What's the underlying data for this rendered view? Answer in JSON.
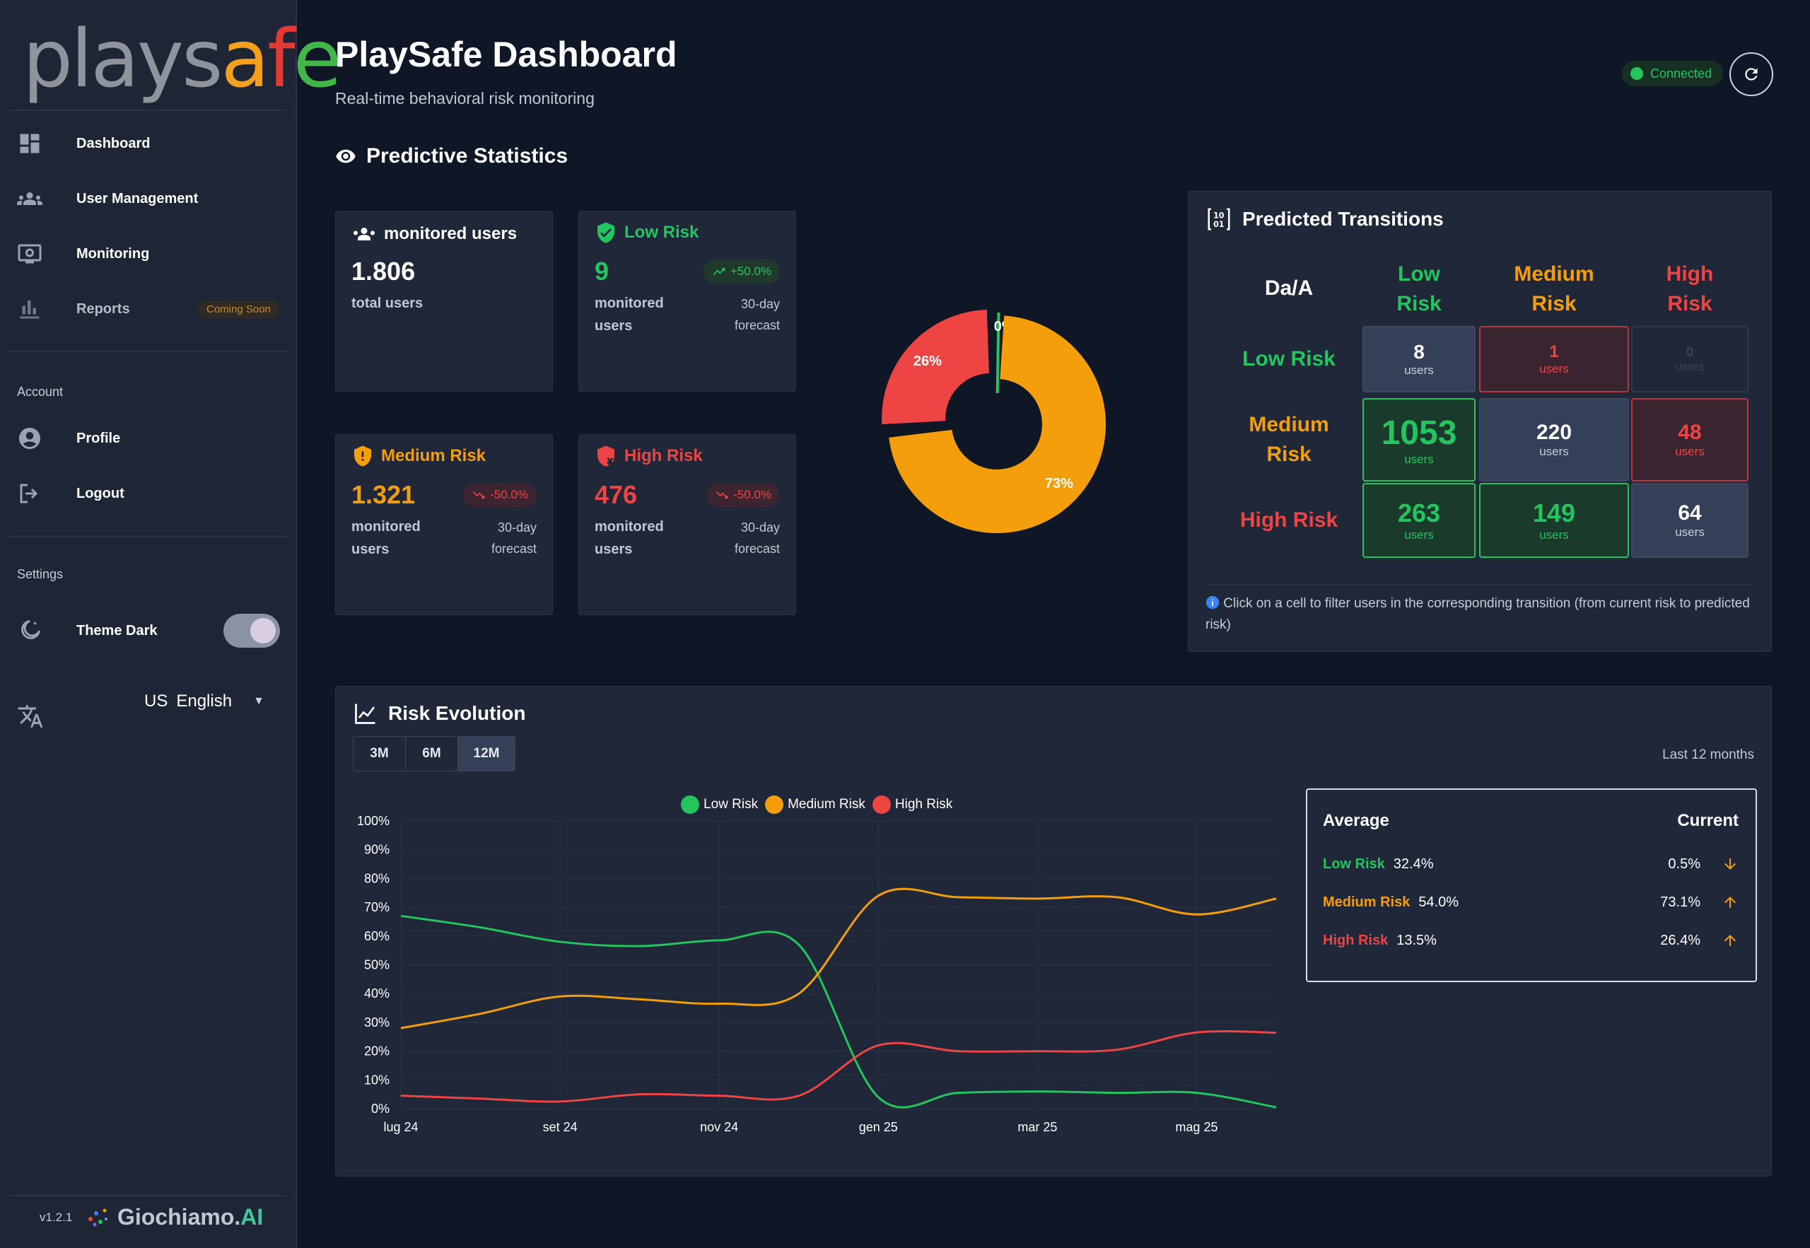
{
  "app": {
    "logo": {
      "part1": "plays",
      "part2": "a",
      "part3": "f",
      "part4": "e"
    },
    "title": "PlaySafe Dashboard",
    "subtitle": "Real-time behavioral risk monitoring",
    "connection": "Connected"
  },
  "sidebar": {
    "items": [
      {
        "label": "Dashboard",
        "icon": "dashboard-icon"
      },
      {
        "label": "User Management",
        "icon": "users-icon"
      },
      {
        "label": "Monitoring",
        "icon": "monitor-icon"
      },
      {
        "label": "Reports",
        "icon": "bar-chart-icon",
        "badge": "Coming Soon"
      }
    ],
    "account_title": "Account",
    "account_items": [
      {
        "label": "Profile",
        "icon": "account-circle-icon"
      },
      {
        "label": "Logout",
        "icon": "logout-icon"
      }
    ],
    "settings_title": "Settings",
    "theme_label": "Theme Dark",
    "theme_on": true,
    "language": {
      "flag": "US",
      "label": "English"
    },
    "version": "v1.2.1",
    "brand": {
      "name": "Giochiamo.",
      "suffix": "AI"
    }
  },
  "predictive": {
    "title": "Predictive Statistics",
    "cards": [
      {
        "title": "monitored users",
        "value": "1.806",
        "sub": "total users",
        "color": "#ffffff"
      },
      {
        "title": "Low Risk",
        "value": "9",
        "sub": "monitored users",
        "change": "+50.0%",
        "forecast": "30-day forecast",
        "color": "#22c55e"
      },
      {
        "title": "Medium Risk",
        "value": "1.321",
        "sub": "monitored users",
        "change": "-50.0%",
        "forecast": "30-day forecast",
        "color": "#f59e0b"
      },
      {
        "title": "High Risk",
        "value": "476",
        "sub": "monitored users",
        "change": "-50.0%",
        "forecast": "30-day forecast",
        "color": "#ef4444"
      }
    ],
    "donut": [
      {
        "label": "0%",
        "value": 0.5,
        "color": "#22c55e"
      },
      {
        "label": "73%",
        "value": 73.1,
        "color": "#f59e0b"
      },
      {
        "label": "26%",
        "value": 26.4,
        "color": "#ef4444"
      }
    ]
  },
  "transitions": {
    "title": "Predicted Transitions",
    "corner": "Da/A",
    "columns": [
      {
        "line1": "Low",
        "line2": "Risk",
        "color": "#22c55e"
      },
      {
        "line1": "Medium",
        "line2": "Risk",
        "color": "#f59e0b"
      },
      {
        "line1": "High",
        "line2": "Risk",
        "color": "#ef4444"
      }
    ],
    "rows": [
      {
        "line1": "Low Risk",
        "line2": "",
        "color": "#22c55e"
      },
      {
        "line1": "Medium",
        "line2": "Risk",
        "color": "#f59e0b"
      },
      {
        "line1": "High Risk",
        "line2": "",
        "color": "#ef4444"
      }
    ],
    "unit": "users",
    "cells": [
      [
        "8",
        "1",
        "0"
      ],
      [
        "1053",
        "220",
        "48"
      ],
      [
        "263",
        "149",
        "64"
      ]
    ],
    "note": "Click on a cell to filter users in the corresponding transition (from current risk to predicted risk)"
  },
  "evolution": {
    "title": "Risk Evolution",
    "tabs": [
      "3M",
      "6M",
      "12M"
    ],
    "active_tab": "12M",
    "range_label": "Last 12 months",
    "summary": {
      "avg_header": "Average",
      "cur_header": "Current",
      "rows": [
        {
          "name": "Low Risk",
          "avg": "32.4%",
          "current": "0.5%",
          "trend": "down",
          "color": "#22c55e"
        },
        {
          "name": "Medium Risk",
          "avg": "54.0%",
          "current": "73.1%",
          "trend": "up",
          "color": "#f59e0b"
        },
        {
          "name": "High Risk",
          "avg": "13.5%",
          "current": "26.4%",
          "trend": "up",
          "color": "#ef4444"
        }
      ]
    }
  },
  "chart_data": {
    "type": "line",
    "title": "",
    "xlabel": "",
    "ylabel": "",
    "x_ticks": [
      "lug 24",
      "set 24",
      "nov 24",
      "gen 25",
      "mar 25",
      "mag 25"
    ],
    "y_ticks": [
      "0%",
      "10%",
      "20%",
      "30%",
      "40%",
      "50%",
      "60%",
      "70%",
      "80%",
      "90%",
      "100%"
    ],
    "ylim": [
      0,
      100
    ],
    "legend_position": "top",
    "grid": true,
    "x": [
      0,
      1,
      2,
      3,
      4,
      5,
      6,
      7,
      8,
      9,
      10,
      11
    ],
    "series": [
      {
        "name": "Low Risk",
        "color": "#22c55e",
        "values": [
          67,
          63,
          58,
          56.5,
          58.5,
          57,
          4,
          5.5,
          6,
          5.5,
          5.5,
          0.5
        ]
      },
      {
        "name": "Medium Risk",
        "color": "#f59e0b",
        "values": [
          28,
          33,
          39,
          38,
          36.5,
          40,
          74,
          73.5,
          73,
          73.5,
          67.5,
          73
        ]
      },
      {
        "name": "High Risk",
        "color": "#ef4444",
        "values": [
          4.5,
          3.5,
          2.5,
          5,
          4.5,
          4.5,
          22,
          20,
          20,
          20.5,
          26.5,
          26.4
        ]
      }
    ]
  }
}
